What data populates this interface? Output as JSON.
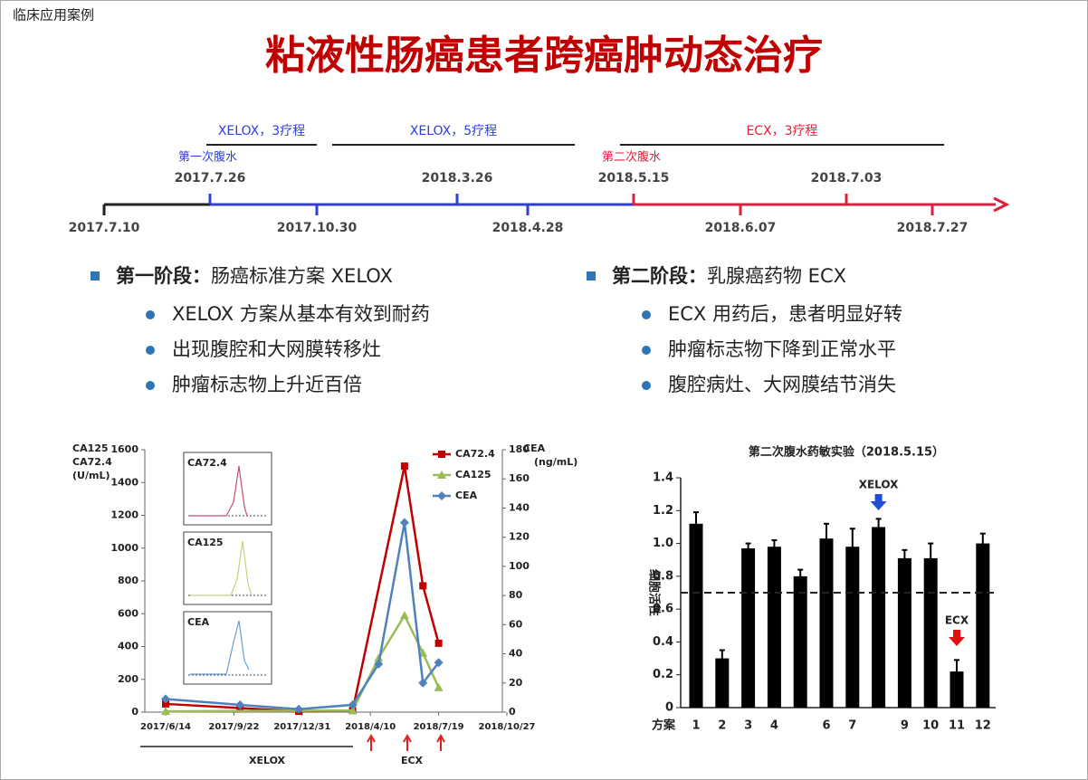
{
  "header": {
    "section": "临床应用案例",
    "title": "粘液性肠癌患者跨癌肿动态治疗"
  },
  "timeline": {
    "below": [
      "2017.7.10",
      "2017.10.30",
      "2018.4.28",
      "2018.6.07",
      "2018.7.27"
    ],
    "above": [
      {
        "date": "2017.7.26",
        "note": "第一次腹水"
      },
      {
        "date": "2018.3.26"
      },
      {
        "date": "2018.5.15",
        "note": "第二次腹水"
      },
      {
        "date": "2018.7.03"
      }
    ],
    "regimens": [
      "XELOX，3疗程",
      "XELOX，5疗程",
      "ECX，3疗程"
    ]
  },
  "phases": [
    {
      "label": "第一阶段：",
      "title": "肠癌标准方案 XELOX",
      "points": [
        "XELOX 方案从基本有效到耐药",
        "出现腹腔和大网膜转移灶",
        "肿瘤标志物上升近百倍"
      ]
    },
    {
      "label": "第二阶段：",
      "title": "乳腺癌药物 ECX",
      "points": [
        "ECX 用药后，患者明显好转",
        "肿瘤标志物下降到正常水平",
        "腹腔病灶、大网膜结节消失"
      ]
    }
  ],
  "chart_data": [
    {
      "type": "line",
      "y_label": [
        "CA125",
        "CA72.4",
        "(U/mL)"
      ],
      "y2_label": [
        "CEA",
        "(ng/mL)"
      ],
      "xlim": [
        "2017/6/14",
        "2018/10/27"
      ],
      "xticks": [
        "2017/6/14",
        "2017/9/22",
        "2017/12/31",
        "2018/4/10",
        "2018/7/19",
        "2018/10/27"
      ],
      "ylim": [
        0,
        1600
      ],
      "yticks": [
        0,
        200,
        400,
        600,
        800,
        1000,
        1200,
        1400,
        1600
      ],
      "y2lim": [
        0,
        180
      ],
      "y2ticks": [
        0,
        20,
        40,
        60,
        80,
        100,
        120,
        140,
        160,
        180
      ],
      "legend": "upper right",
      "series": [
        {
          "name": "CA72.4",
          "color": "#c00000",
          "marker": "square",
          "x": [
            "2017/6/14",
            "2017/10/1",
            "2017/12/26",
            "2018/3/15",
            "2018/5/30",
            "2018/6/26",
            "2018/7/19"
          ],
          "values": [
            50,
            25,
            5,
            10,
            1500,
            770,
            420
          ]
        },
        {
          "name": "CA125",
          "color": "#9bbb59",
          "marker": "triangle",
          "x": [
            "2017/6/14",
            "2018/3/15",
            "2018/4/22",
            "2018/5/30",
            "2018/6/26",
            "2018/7/19"
          ],
          "values": [
            5,
            10,
            330,
            590,
            360,
            150
          ]
        },
        {
          "name": "CEA",
          "color": "#4f81bd",
          "marker": "diamond",
          "axis": "y2",
          "x": [
            "2017/6/14",
            "2017/10/1",
            "2017/12/26",
            "2018/3/15",
            "2018/4/22",
            "2018/5/30",
            "2018/6/26",
            "2018/7/19"
          ],
          "values": [
            9,
            5,
            2,
            5,
            33,
            130,
            20,
            34
          ]
        }
      ],
      "insets": [
        "CA72.4",
        "CA125",
        "CEA"
      ],
      "regimens": [
        "XELOX",
        "ECX"
      ]
    },
    {
      "type": "bar",
      "title": "第二次腹水药敏实验（2018.5.15）",
      "y_label": "细胞活性",
      "x_label": "方案",
      "categories": [
        "1",
        "2",
        "3",
        "4",
        null,
        "6",
        "7",
        null,
        "9",
        "10",
        "11",
        "12"
      ],
      "values": [
        1.12,
        0.3,
        0.97,
        0.98,
        0.8,
        1.03,
        0.98,
        1.1,
        0.91,
        0.91,
        0.22,
        1.0
      ],
      "errors": [
        0.07,
        0.05,
        0.03,
        0.04,
        0.04,
        0.09,
        0.11,
        0.05,
        0.05,
        0.09,
        0.07,
        0.06
      ],
      "color": "#000000",
      "ylim": [
        0,
        1.4
      ],
      "yticks": [
        0,
        0.2,
        0.4,
        0.6,
        0.8,
        {
          "value": 1,
          "label": "1.0"
        },
        1.2,
        1.4
      ],
      "reference": 0.7,
      "annotations": [
        "XELOX",
        "ECX"
      ]
    }
  ]
}
